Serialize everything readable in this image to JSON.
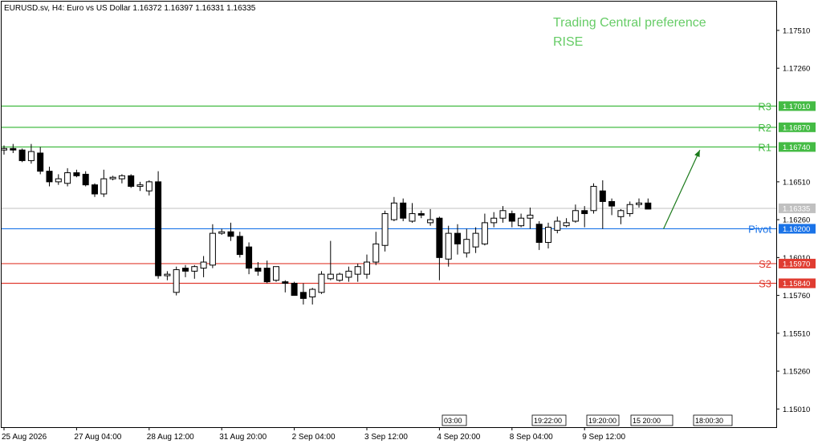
{
  "header": {
    "symbol_line": "EURUSD.sv, H4:  Euro vs US Dollar  1.16372 1.16397 1.16331 1.16335"
  },
  "annotation": {
    "line1": "Trading Central preference",
    "line2": "RISE",
    "color": "#66cc66"
  },
  "colors": {
    "resistance": "#44bb44",
    "support": "#e03c31",
    "pivot": "#1a73e8",
    "current": "#c0c0c0",
    "arrow": "#1b7a1b"
  },
  "chart_data": {
    "type": "candlestick",
    "timeframe": "H4",
    "ylim": [
      1.1489,
      1.177
    ],
    "y_ticks": [
      "1.17510",
      "1.17260",
      "1.16510",
      "1.16260",
      "1.16010",
      "1.15760",
      "1.15510",
      "1.15260",
      "1.15010"
    ],
    "x_labels": [
      "25 Aug 2026",
      "27 Aug 04:00",
      "28 Aug 12:00",
      "31 Aug 20:00",
      "2 Sep 04:00",
      "3 Sep 12:00",
      "4 Sep 20:00",
      "8 Sep 04:00",
      "9 Sep 12:00"
    ],
    "x_label_positions": [
      0,
      8,
      16,
      24,
      32,
      40,
      48,
      56,
      64
    ],
    "levels": [
      {
        "name": "R3",
        "value": 1.1701,
        "label": "1.17010",
        "kind": "resistance"
      },
      {
        "name": "R2",
        "value": 1.1687,
        "label": "1.16870",
        "kind": "resistance"
      },
      {
        "name": "R1",
        "value": 1.1674,
        "label": "1.16740",
        "kind": "resistance"
      },
      {
        "name": "Pivot",
        "value": 1.162,
        "label": "1.16200",
        "kind": "pivot"
      },
      {
        "name": "S2",
        "value": 1.1597,
        "label": "1.15970",
        "kind": "support"
      },
      {
        "name": "S3",
        "value": 1.1584,
        "label": "1.15840",
        "kind": "support"
      }
    ],
    "current_price": {
      "value": 1.16335,
      "label": "1.16335"
    },
    "forecast_arrow": {
      "from_index": 72,
      "from": 1.162,
      "to_index": 76,
      "to": 1.1672
    },
    "candles": [
      [
        1.1672,
        1.1675,
        1.1669,
        1.1673
      ],
      [
        1.1673,
        1.1676,
        1.167,
        1.1672
      ],
      [
        1.1672,
        1.1673,
        1.1664,
        1.1665
      ],
      [
        1.1665,
        1.1676,
        1.1663,
        1.1671
      ],
      [
        1.167,
        1.1674,
        1.1656,
        1.1658
      ],
      [
        1.1658,
        1.1661,
        1.1648,
        1.1651
      ],
      [
        1.1651,
        1.1656,
        1.1649,
        1.1653
      ],
      [
        1.165,
        1.166,
        1.1648,
        1.1657
      ],
      [
        1.1657,
        1.1659,
        1.1654,
        1.1655
      ],
      [
        1.1656,
        1.1658,
        1.1648,
        1.1649
      ],
      [
        1.1649,
        1.165,
        1.1641,
        1.1643
      ],
      [
        1.1643,
        1.1659,
        1.1641,
        1.1653
      ],
      [
        1.1653,
        1.1655,
        1.1652,
        1.1654
      ],
      [
        1.1653,
        1.1656,
        1.165,
        1.1655
      ],
      [
        1.1655,
        1.1656,
        1.1647,
        1.1648
      ],
      [
        1.1648,
        1.1651,
        1.1645,
        1.1649
      ],
      [
        1.1645,
        1.1652,
        1.1642,
        1.1651
      ],
      [
        1.1651,
        1.1658,
        1.1587,
        1.1589
      ],
      [
        1.1589,
        1.1592,
        1.1586,
        1.159
      ],
      [
        1.1578,
        1.1595,
        1.1576,
        1.1593
      ],
      [
        1.1594,
        1.1596,
        1.1588,
        1.1592
      ],
      [
        1.1592,
        1.1596,
        1.1587,
        1.1595
      ],
      [
        1.1594,
        1.1602,
        1.1588,
        1.1598
      ],
      [
        1.1596,
        1.1623,
        1.1594,
        1.1617
      ],
      [
        1.1617,
        1.162,
        1.1616,
        1.1618
      ],
      [
        1.1618,
        1.1624,
        1.1612,
        1.1615
      ],
      [
        1.1615,
        1.1618,
        1.1601,
        1.1603
      ],
      [
        1.1608,
        1.1611,
        1.159,
        1.1594
      ],
      [
        1.1594,
        1.1598,
        1.1589,
        1.1592
      ],
      [
        1.1594,
        1.1599,
        1.1584,
        1.1585
      ],
      [
        1.1586,
        1.1595,
        1.1585,
        1.1595
      ],
      [
        1.1585,
        1.1586,
        1.1578,
        1.1584
      ],
      [
        1.1584,
        1.1585,
        1.1576,
        1.1576
      ],
      [
        1.1578,
        1.1584,
        1.157,
        1.1574
      ],
      [
        1.1575,
        1.1581,
        1.157,
        1.158
      ],
      [
        1.1578,
        1.1592,
        1.1577,
        1.159
      ],
      [
        1.1587,
        1.1612,
        1.1586,
        1.159
      ],
      [
        1.1586,
        1.1591,
        1.1585,
        1.159
      ],
      [
        1.1588,
        1.1595,
        1.1585,
        1.1592
      ],
      [
        1.159,
        1.1597,
        1.1585,
        1.1595
      ],
      [
        1.159,
        1.1603,
        1.1587,
        1.1598
      ],
      [
        1.1598,
        1.1618,
        1.1596,
        1.161
      ],
      [
        1.1609,
        1.1632,
        1.1605,
        1.163
      ],
      [
        1.1626,
        1.1641,
        1.1625,
        1.1637
      ],
      [
        1.1637,
        1.164,
        1.1625,
        1.1627
      ],
      [
        1.1625,
        1.1637,
        1.1624,
        1.163
      ],
      [
        1.163,
        1.1632,
        1.1627,
        1.1629
      ],
      [
        1.1624,
        1.1633,
        1.1622,
        1.1626
      ],
      [
        1.1627,
        1.1628,
        1.1586,
        1.1601
      ],
      [
        1.16,
        1.1622,
        1.1595,
        1.1617
      ],
      [
        1.1617,
        1.1623,
        1.1603,
        1.161
      ],
      [
        1.1604,
        1.162,
        1.1601,
        1.1613
      ],
      [
        1.1608,
        1.1621,
        1.1604,
        1.1617
      ],
      [
        1.161,
        1.163,
        1.1609,
        1.1624
      ],
      [
        1.1624,
        1.1631,
        1.1621,
        1.1627
      ],
      [
        1.1627,
        1.1635,
        1.1624,
        1.1632
      ],
      [
        1.163,
        1.1632,
        1.1621,
        1.1625
      ],
      [
        1.1622,
        1.163,
        1.1621,
        1.1627
      ],
      [
        1.1627,
        1.1634,
        1.162,
        1.1629
      ],
      [
        1.1623,
        1.1625,
        1.1606,
        1.1611
      ],
      [
        1.1611,
        1.1624,
        1.1607,
        1.1621
      ],
      [
        1.1619,
        1.1628,
        1.1617,
        1.1625
      ],
      [
        1.1622,
        1.1627,
        1.1621,
        1.1624
      ],
      [
        1.1625,
        1.1636,
        1.1624,
        1.1632
      ],
      [
        1.1632,
        1.1635,
        1.1621,
        1.163
      ],
      [
        1.1632,
        1.165,
        1.163,
        1.1648
      ],
      [
        1.1645,
        1.1652,
        1.162,
        1.1638
      ],
      [
        1.1638,
        1.164,
        1.1629,
        1.1635
      ],
      [
        1.1628,
        1.1633,
        1.1623,
        1.1632
      ],
      [
        1.163,
        1.1638,
        1.1628,
        1.1636
      ],
      [
        1.1636,
        1.164,
        1.1634,
        1.1637
      ],
      [
        1.1637,
        1.164,
        1.1633,
        1.1633
      ]
    ]
  }
}
